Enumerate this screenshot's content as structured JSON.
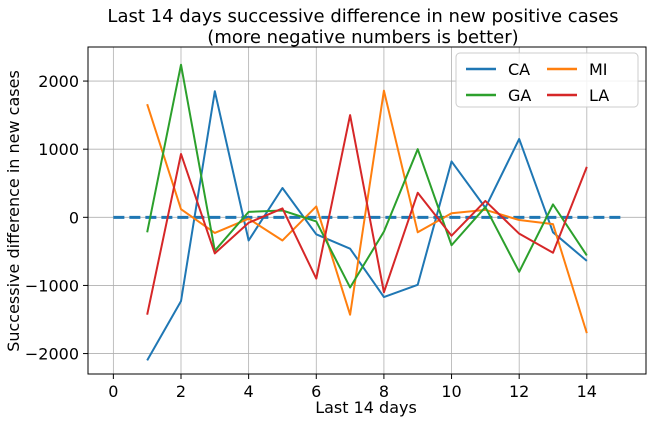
{
  "chart_data": {
    "type": "line",
    "title": "Last 14 days successive difference in new positive cases",
    "subtitle": "(more negative numbers is better)",
    "xlabel": "Last 14 days",
    "ylabel": "Successive difference in new cases",
    "xlim": [
      -0.75,
      15.75
    ],
    "ylim": [
      -2300,
      2500
    ],
    "xticks": [
      0,
      2,
      4,
      6,
      8,
      10,
      12,
      14
    ],
    "yticks": [
      -2000,
      -1000,
      0,
      1000,
      2000
    ],
    "ytick_labels": [
      "−2000",
      "−1000",
      "0",
      "1000",
      "2000"
    ],
    "grid": true,
    "legend_position": "top-right",
    "x": [
      1,
      2,
      3,
      4,
      5,
      6,
      7,
      8,
      9,
      10,
      11,
      12,
      13,
      14
    ],
    "series": [
      {
        "name": "CA",
        "color": "#1f77b4",
        "values": [
          -2100,
          -1230,
          1850,
          -340,
          430,
          -250,
          -460,
          -1170,
          -990,
          820,
          140,
          1150,
          -220,
          -640
        ]
      },
      {
        "name": "MI",
        "color": "#ff7f0e",
        "values": [
          1660,
          120,
          -230,
          -20,
          -340,
          160,
          -1430,
          1860,
          -220,
          60,
          110,
          -40,
          -100,
          -1700
        ]
      },
      {
        "name": "GA",
        "color": "#2ca02c",
        "values": [
          -220,
          2240,
          -490,
          80,
          100,
          -60,
          -1030,
          -210,
          1000,
          -410,
          150,
          -800,
          190,
          -560
        ]
      },
      {
        "name": "LA",
        "color": "#d62728",
        "values": [
          -1430,
          930,
          -530,
          -80,
          130,
          -900,
          1500,
          -1100,
          360,
          -270,
          240,
          -240,
          -520,
          740
        ]
      }
    ],
    "reference_line": {
      "x_range": [
        0,
        15
      ],
      "value": 0,
      "color": "#1f77b4",
      "style": "dashed"
    }
  }
}
